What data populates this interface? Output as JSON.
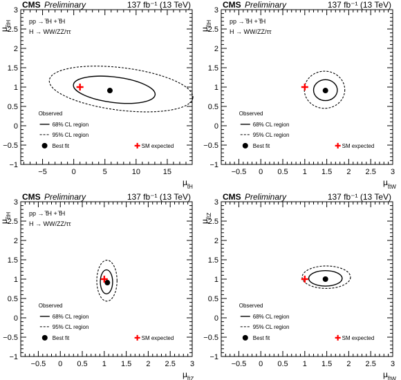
{
  "header": {
    "experiment": "CMS",
    "status": "Preliminary",
    "luminosity": "137 fb⁻¹ (13 TeV)"
  },
  "process_lines": [
    "pp → t̅H + t̅H",
    "H → WW/ZZ/ττ"
  ],
  "legend": {
    "observed": "Observed",
    "cl68": "68% CL region",
    "cl95": "95% CL region",
    "best_fit": "Best fit",
    "sm_expected": "SM expected"
  },
  "colors": {
    "sm_marker": "#ff0000",
    "contour": "#000000"
  },
  "chart_data": [
    {
      "type": "scatter",
      "xlabel": "μ",
      "xlabel_sub": "t̅H",
      "ylabel": "μ",
      "ylabel_sub": "t̅tH",
      "xlim": [
        -8.5,
        19
      ],
      "ylim": [
        -1,
        3
      ],
      "xticks": [
        -5,
        0,
        5,
        10,
        15
      ],
      "yticks": [
        -1,
        -0.5,
        0,
        0.5,
        1,
        1.5,
        2,
        2.5,
        3
      ],
      "best_fit": [
        5.8,
        0.91
      ],
      "sm_expected": [
        1,
        1
      ],
      "contour_68": {
        "cx": 6.5,
        "cy": 0.93,
        "rx": 6.6,
        "ry": 0.33,
        "angle_deg": 7
      },
      "contour_95": {
        "cx": 7.6,
        "cy": 0.95,
        "rx": 11.6,
        "ry": 0.55,
        "angle_deg": 7
      },
      "show_process_label": true,
      "legend_ref": [
        -5,
        0.27
      ]
    },
    {
      "type": "scatter",
      "xlabel": "μ",
      "xlabel_sub": "t̅tW",
      "ylabel": "μ",
      "ylabel_sub": "t̅tH",
      "xlim": [
        -0.9,
        3
      ],
      "ylim": [
        -1,
        3
      ],
      "xticks": [
        -0.5,
        0,
        0.5,
        1,
        1.5,
        2,
        2.5,
        3
      ],
      "yticks": [
        -1,
        -0.5,
        0,
        0.5,
        1,
        1.5,
        2,
        2.5,
        3
      ],
      "best_fit": [
        1.47,
        0.91
      ],
      "sm_expected": [
        1,
        1
      ],
      "contour_68": {
        "cx": 1.47,
        "cy": 0.92,
        "rx": 0.27,
        "ry": 0.27,
        "angle_deg": 0
      },
      "contour_95": {
        "cx": 1.45,
        "cy": 0.93,
        "rx": 0.46,
        "ry": 0.48,
        "angle_deg": 0
      },
      "show_process_label": true,
      "legend_ref": [
        -0.4,
        0.27
      ]
    },
    {
      "type": "scatter",
      "xlabel": "μ",
      "xlabel_sub": "t̅tZ",
      "ylabel": "μ",
      "ylabel_sub": "t̅tH",
      "xlim": [
        -0.9,
        3
      ],
      "ylim": [
        -1,
        3
      ],
      "xticks": [
        -0.5,
        0,
        0.5,
        1,
        1.5,
        2,
        2.5,
        3
      ],
      "yticks": [
        -1,
        -0.5,
        0,
        0.5,
        1,
        1.5,
        2,
        2.5,
        3
      ],
      "best_fit": [
        1.07,
        0.91
      ],
      "sm_expected": [
        1,
        1
      ],
      "contour_68": {
        "cx": 1.05,
        "cy": 0.93,
        "rx": 0.14,
        "ry": 0.31,
        "angle_deg": 0
      },
      "contour_95": {
        "cx": 1.06,
        "cy": 0.96,
        "rx": 0.23,
        "ry": 0.53,
        "angle_deg": 0
      },
      "show_process_label": true,
      "legend_ref": [
        -0.4,
        0.27
      ]
    },
    {
      "type": "scatter",
      "xlabel": "μ",
      "xlabel_sub": "t̅tW",
      "ylabel": "μ",
      "ylabel_sub": "t̅tZ",
      "xlim": [
        -0.9,
        3
      ],
      "ylim": [
        -1,
        3
      ],
      "xticks": [
        -0.5,
        0,
        0.5,
        1,
        1.5,
        2,
        2.5,
        3
      ],
      "yticks": [
        -1,
        -0.5,
        0,
        0.5,
        1,
        1.5,
        2,
        2.5,
        3
      ],
      "best_fit": [
        1.47,
        1.0
      ],
      "sm_expected": [
        1,
        1
      ],
      "contour_68": {
        "cx": 1.47,
        "cy": 1.02,
        "rx": 0.38,
        "ry": 0.2,
        "angle_deg": 0
      },
      "contour_95": {
        "cx": 1.49,
        "cy": 1.05,
        "rx": 0.55,
        "ry": 0.29,
        "angle_deg": 0
      },
      "show_process_label": false,
      "legend_ref": [
        -0.4,
        0.27
      ]
    }
  ]
}
